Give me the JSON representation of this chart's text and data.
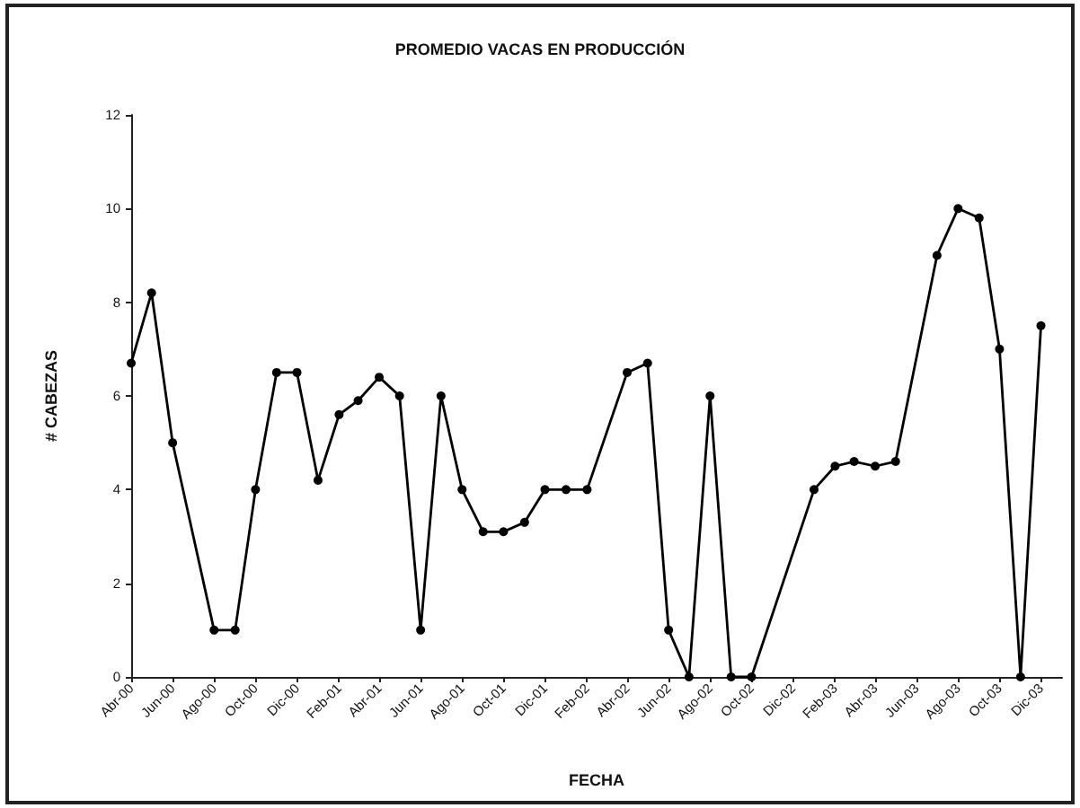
{
  "chart_data": {
    "type": "line",
    "title": "PROMEDIO VACAS EN PRODUCCIÓN",
    "xlabel": "FECHA",
    "ylabel": "# CABEZAS",
    "x": [
      "2000-04",
      "2000-05",
      "2000-06",
      "2000-08",
      "2000-09",
      "2000-10",
      "2000-11",
      "2000-12",
      "2001-01",
      "2001-02",
      "2001-03",
      "2001-04",
      "2001-05",
      "2001-06",
      "2001-07",
      "2001-08",
      "2001-09",
      "2001-10",
      "2001-11",
      "2001-12",
      "2002-01",
      "2002-02",
      "2002-04",
      "2002-05",
      "2002-06",
      "2002-07",
      "2002-08",
      "2002-09",
      "2002-10",
      "2003-01",
      "2003-02",
      "2003-03",
      "2003-04",
      "2003-05",
      "2003-07",
      "2003-08",
      "2003-09",
      "2003-10",
      "2003-11",
      "2003-12"
    ],
    "values": [
      6.7,
      8.2,
      5,
      1,
      1,
      4,
      6.5,
      6.5,
      4.2,
      5.6,
      5.9,
      6.4,
      6,
      1,
      6,
      4,
      3.1,
      3.1,
      3.3,
      4,
      4,
      4,
      6.5,
      6.7,
      1,
      0,
      6,
      0,
      0,
      4,
      4.5,
      4.6,
      4.5,
      4.6,
      9,
      10,
      9.8,
      7,
      0,
      7.5
    ],
    "color": "#000000",
    "marker": "circle",
    "line_style": "solid",
    "xlim": [
      "2000-04",
      "2004-01"
    ],
    "xticks": [
      {
        "value": "2000-04",
        "label": "Abr-00"
      },
      {
        "value": "2000-06",
        "label": "Jun-00"
      },
      {
        "value": "2000-08",
        "label": "Ago-00"
      },
      {
        "value": "2000-10",
        "label": "Oct-00"
      },
      {
        "value": "2000-12",
        "label": "Dic-00"
      },
      {
        "value": "2001-02",
        "label": "Feb-01"
      },
      {
        "value": "2001-04",
        "label": "Abr-01"
      },
      {
        "value": "2001-06",
        "label": "Jun-01"
      },
      {
        "value": "2001-08",
        "label": "Ago-01"
      },
      {
        "value": "2001-10",
        "label": "Oct-01"
      },
      {
        "value": "2001-12",
        "label": "Dic-01"
      },
      {
        "value": "2002-02",
        "label": "Feb-02"
      },
      {
        "value": "2002-04",
        "label": "Abr-02"
      },
      {
        "value": "2002-06",
        "label": "Jun-02"
      },
      {
        "value": "2002-08",
        "label": "Ago-02"
      },
      {
        "value": "2002-10",
        "label": "Oct-02"
      },
      {
        "value": "2002-12",
        "label": "Dic-02"
      },
      {
        "value": "2003-02",
        "label": "Feb-03"
      },
      {
        "value": "2003-04",
        "label": "Abr-03"
      },
      {
        "value": "2003-06",
        "label": "Jun-03"
      },
      {
        "value": "2003-08",
        "label": "Ago-03"
      },
      {
        "value": "2003-10",
        "label": "Oct-03"
      },
      {
        "value": "2003-12",
        "label": "Dic-03"
      }
    ],
    "ylim": [
      0,
      12
    ],
    "yticks": [
      0,
      2,
      4,
      6,
      8,
      10,
      12
    ]
  }
}
